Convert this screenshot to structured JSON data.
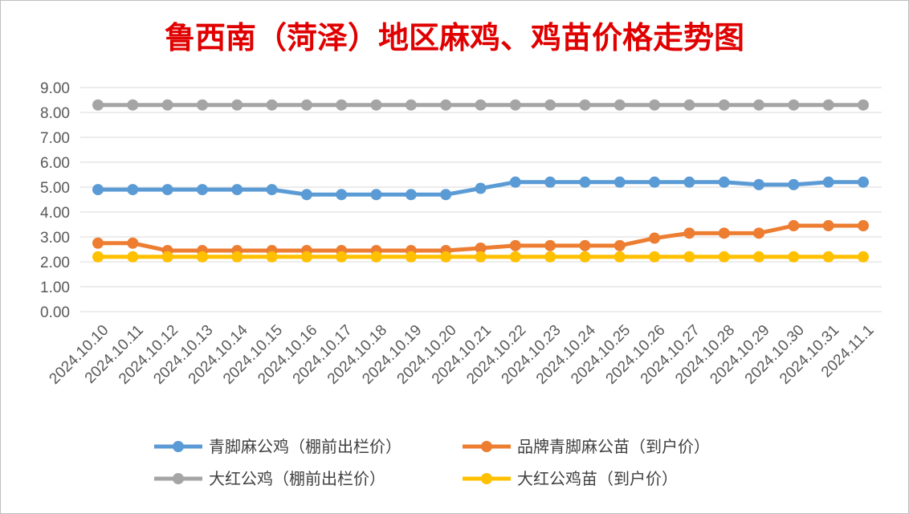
{
  "chart_data": {
    "type": "line",
    "title": "鲁西南（菏泽）地区麻鸡、鸡苗价格走势图",
    "xlabel": "",
    "ylabel": "",
    "ylim": [
      0,
      9
    ],
    "yticks": [
      "0.00",
      "1.00",
      "2.00",
      "3.00",
      "4.00",
      "5.00",
      "6.00",
      "7.00",
      "8.00",
      "9.00"
    ],
    "grid": true,
    "legend_position": "bottom",
    "categories": [
      "2024.10.10",
      "2024.10.11",
      "2024.10.12",
      "2024.10.13",
      "2024.10.14",
      "2024.10.15",
      "2024.10.16",
      "2024.10.17",
      "2024.10.18",
      "2024.10.19",
      "2024.10.20",
      "2024.10.21",
      "2024.10.22",
      "2024.10.23",
      "2024.10.24",
      "2024.10.25",
      "2024.10.26",
      "2024.10.27",
      "2024.10.28",
      "2024.10.29",
      "2024.10.30",
      "2024.10.31",
      "2024.11.1"
    ],
    "series": [
      {
        "name": "青脚麻公鸡（棚前出栏价）",
        "color": "#5b9bd5",
        "values": [
          4.9,
          4.9,
          4.9,
          4.9,
          4.9,
          4.9,
          4.7,
          4.7,
          4.7,
          4.7,
          4.7,
          4.95,
          5.2,
          5.2,
          5.2,
          5.2,
          5.2,
          5.2,
          5.2,
          5.1,
          5.1,
          5.2,
          5.2
        ]
      },
      {
        "name": "品牌青脚麻公苗（到户价）",
        "color": "#ed7d31",
        "values": [
          2.75,
          2.75,
          2.45,
          2.45,
          2.45,
          2.45,
          2.45,
          2.45,
          2.45,
          2.45,
          2.45,
          2.55,
          2.65,
          2.65,
          2.65,
          2.65,
          2.95,
          3.15,
          3.15,
          3.15,
          3.45,
          3.45,
          3.45
        ]
      },
      {
        "name": "大红公鸡（棚前出栏价）",
        "color": "#a5a5a5",
        "values": [
          8.3,
          8.3,
          8.3,
          8.3,
          8.3,
          8.3,
          8.3,
          8.3,
          8.3,
          8.3,
          8.3,
          8.3,
          8.3,
          8.3,
          8.3,
          8.3,
          8.3,
          8.3,
          8.3,
          8.3,
          8.3,
          8.3,
          8.3
        ]
      },
      {
        "name": "大红公鸡苗（到户价）",
        "color": "#ffc000",
        "values": [
          2.2,
          2.2,
          2.2,
          2.2,
          2.2,
          2.2,
          2.2,
          2.2,
          2.2,
          2.2,
          2.2,
          2.2,
          2.2,
          2.2,
          2.2,
          2.2,
          2.2,
          2.2,
          2.2,
          2.2,
          2.2,
          2.2,
          2.2
        ]
      }
    ],
    "legend_order": [
      0,
      1,
      2,
      3
    ]
  }
}
